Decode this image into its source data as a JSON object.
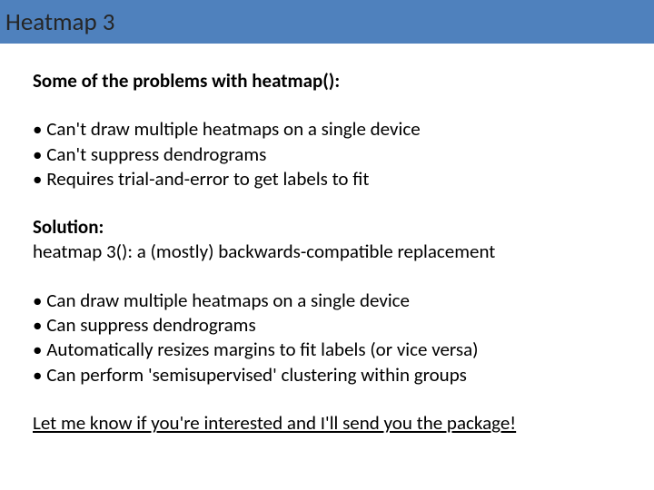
{
  "titleBar": {
    "background": "#4f81bd",
    "text": "Heatmap 3"
  },
  "heading1": "Some of the problems with heatmap():",
  "problems": [
    "Can't draw multiple heatmaps on a single device",
    "Can't suppress dendrograms",
    "Requires trial-and-error to get labels to fit"
  ],
  "solutionLabel": "Solution:",
  "solutionText": "heatmap 3(): a (mostly) backwards-compatible replacement",
  "features": [
    "Can draw multiple heatmaps on a single device",
    "Can suppress dendrograms",
    "Automatically resizes margins to fit labels (or vice versa)",
    "Can perform 'semisupervised' clustering within groups"
  ],
  "closing": "Let me know if you're interested and I'll send you the package!"
}
